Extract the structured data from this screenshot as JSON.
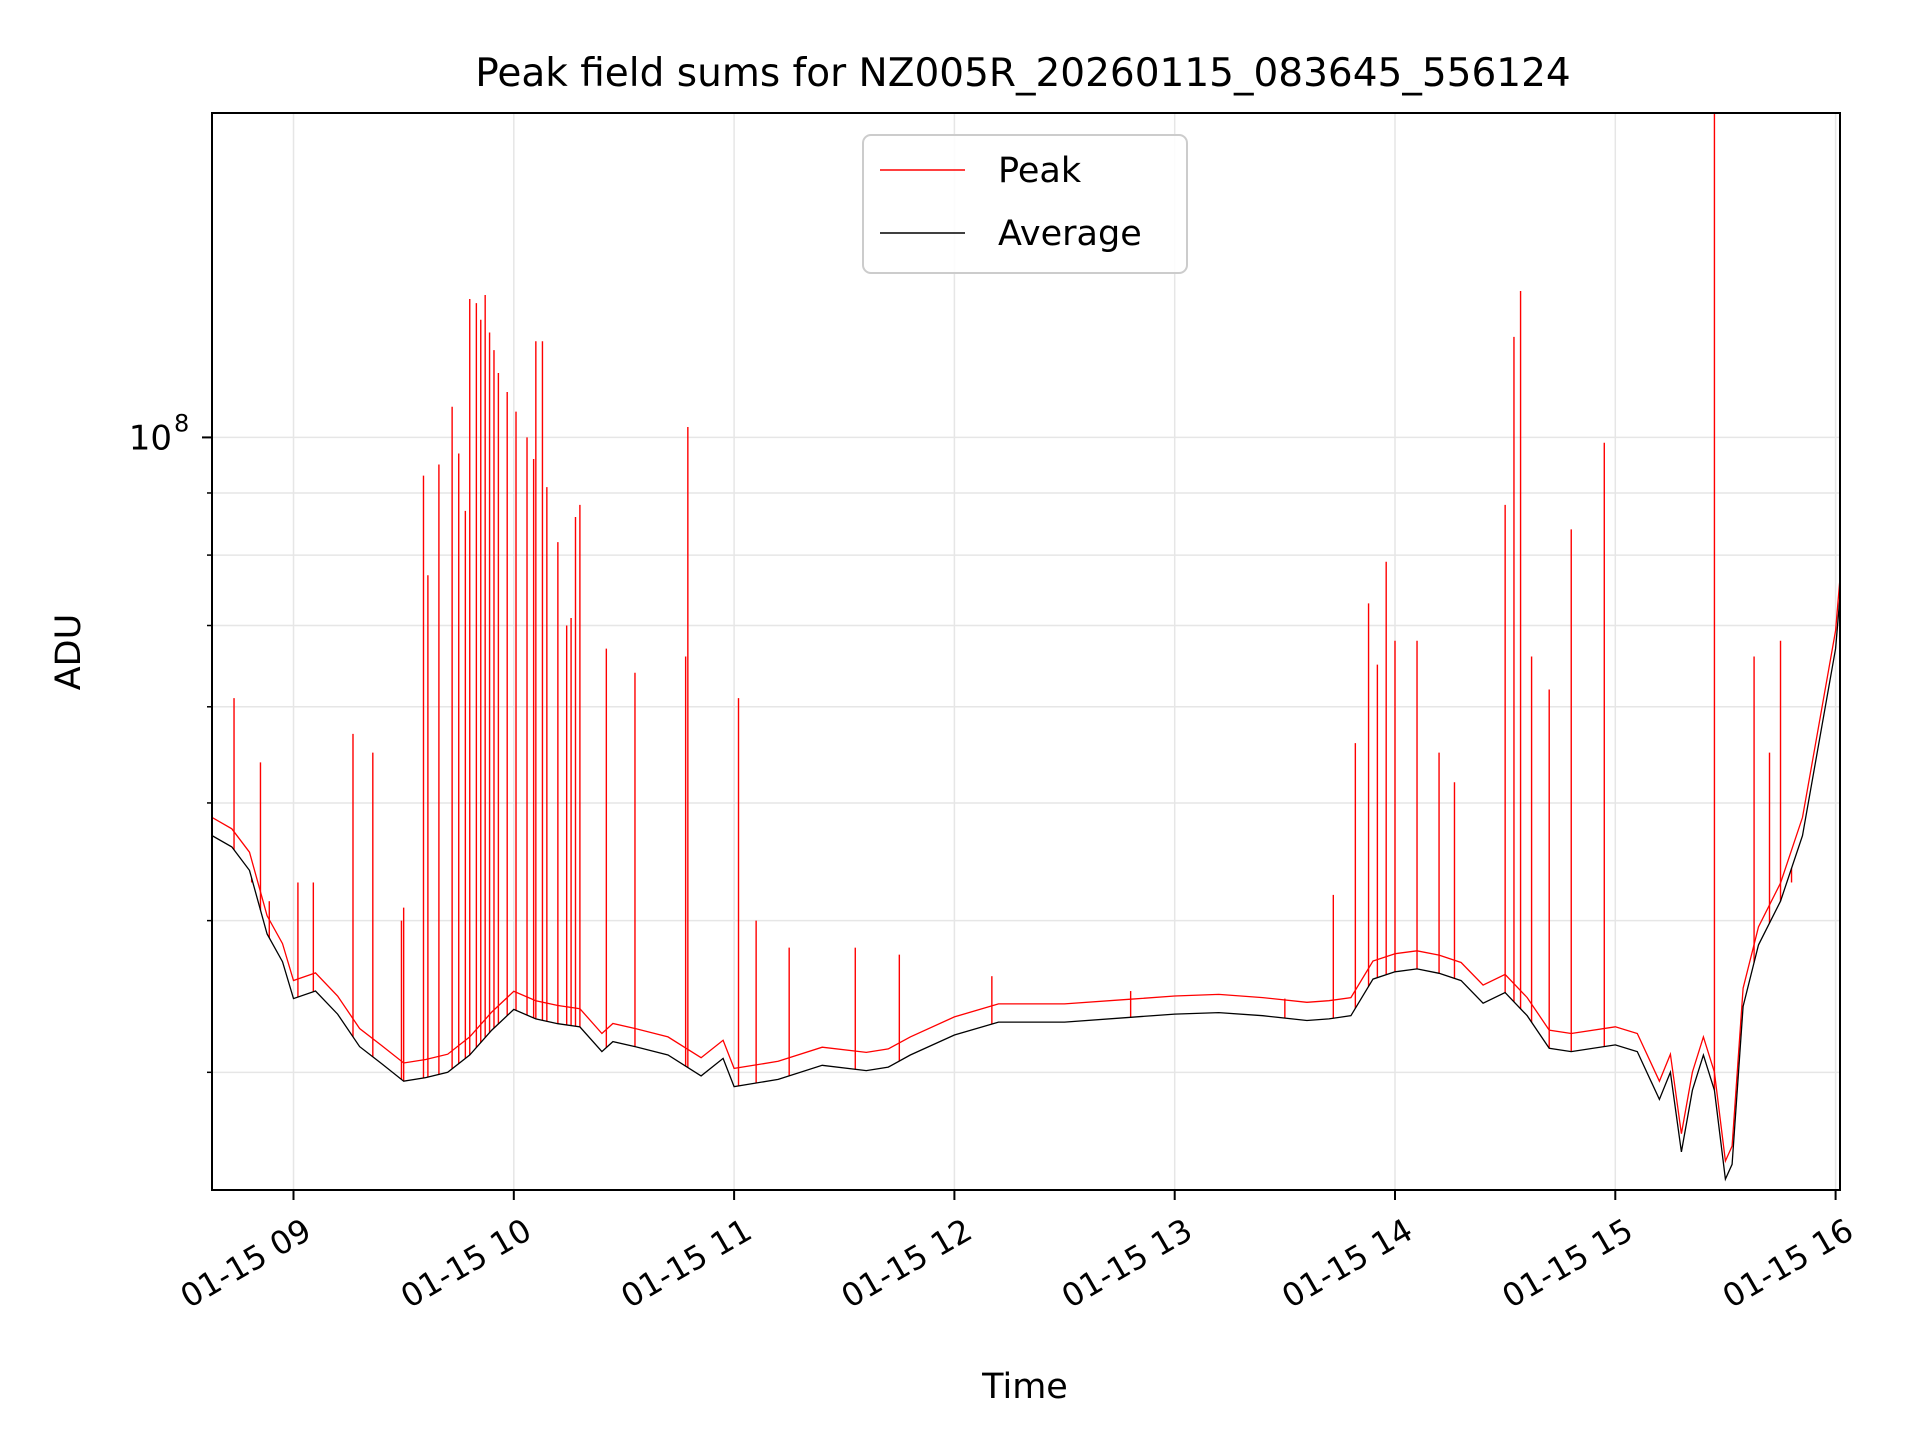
{
  "chart_data": {
    "type": "line",
    "title": "Peak field sums for NZ005R_20260115_083645_556124",
    "xlabel": "Time",
    "ylabel": "ADU",
    "yscale": "log",
    "grid": true,
    "legend_position": "upper-center",
    "xlim_hours": [
      8.63,
      16.02
    ],
    "ylim": [
      24000000,
      185000000
    ],
    "x_ticks": [
      {
        "value": 9,
        "label": "01-15 09"
      },
      {
        "value": 10,
        "label": "01-15 10"
      },
      {
        "value": 11,
        "label": "01-15 11"
      },
      {
        "value": 12,
        "label": "01-15 12"
      },
      {
        "value": 13,
        "label": "01-15 13"
      },
      {
        "value": 14,
        "label": "01-15 14"
      },
      {
        "value": 15,
        "label": "01-15 15"
      },
      {
        "value": 16,
        "label": "01-15 16"
      }
    ],
    "y_ticks": [
      {
        "value": 100000000,
        "base": "10",
        "exponent": "8"
      }
    ],
    "average_series": {
      "name": "Average",
      "color": "#000000",
      "x": [
        8.63,
        8.72,
        8.8,
        8.88,
        8.95,
        9.0,
        9.1,
        9.2,
        9.3,
        9.4,
        9.5,
        9.6,
        9.7,
        9.8,
        9.9,
        10.0,
        10.1,
        10.2,
        10.3,
        10.4,
        10.45,
        10.55,
        10.7,
        10.85,
        10.95,
        11.0,
        11.2,
        11.4,
        11.6,
        11.7,
        11.8,
        12.0,
        12.2,
        12.5,
        12.8,
        13.0,
        13.2,
        13.4,
        13.6,
        13.7,
        13.8,
        13.9,
        14.0,
        14.1,
        14.2,
        14.3,
        14.4,
        14.5,
        14.6,
        14.7,
        14.8,
        15.0,
        15.1,
        15.2,
        15.25,
        15.3,
        15.35,
        15.4,
        15.45,
        15.5,
        15.53,
        15.58,
        15.65,
        15.75,
        15.85,
        16.0,
        16.02
      ],
      "y": [
        47000000,
        46000000,
        44000000,
        39000000,
        37000000,
        34500000,
        35000000,
        33500000,
        31500000,
        30500000,
        29500000,
        29700000,
        30000000,
        31000000,
        32500000,
        33800000,
        33200000,
        32900000,
        32700000,
        31200000,
        31800000,
        31500000,
        31000000,
        29800000,
        30800000,
        29200000,
        29600000,
        30400000,
        30100000,
        30300000,
        31000000,
        32200000,
        33000000,
        33000000,
        33300000,
        33500000,
        33600000,
        33400000,
        33100000,
        33200000,
        33400000,
        35800000,
        36300000,
        36500000,
        36200000,
        35700000,
        34200000,
        34900000,
        33400000,
        31400000,
        31200000,
        31600000,
        31200000,
        28500000,
        30000000,
        25800000,
        29000000,
        31000000,
        29000000,
        24500000,
        25200000,
        34000000,
        38200000,
        41500000,
        47000000,
        67000000,
        74000000
      ]
    },
    "peak_series": {
      "name": "Peak",
      "color": "#ff0000",
      "spikes": [
        {
          "x": 8.73,
          "y": 61000000
        },
        {
          "x": 8.81,
          "y": 43000000
        },
        {
          "x": 8.85,
          "y": 54000000
        },
        {
          "x": 8.89,
          "y": 41500000
        },
        {
          "x": 9.02,
          "y": 43000000
        },
        {
          "x": 9.09,
          "y": 43000000
        },
        {
          "x": 9.27,
          "y": 57000000
        },
        {
          "x": 9.36,
          "y": 55000000
        },
        {
          "x": 9.49,
          "y": 40000000
        },
        {
          "x": 9.5,
          "y": 41000000
        },
        {
          "x": 9.59,
          "y": 93000000
        },
        {
          "x": 9.61,
          "y": 77000000
        },
        {
          "x": 9.66,
          "y": 95000000
        },
        {
          "x": 9.72,
          "y": 106000000
        },
        {
          "x": 9.75,
          "y": 97000000
        },
        {
          "x": 9.78,
          "y": 87000000
        },
        {
          "x": 9.8,
          "y": 130000000
        },
        {
          "x": 9.83,
          "y": 129000000
        },
        {
          "x": 9.85,
          "y": 125000000
        },
        {
          "x": 9.87,
          "y": 131000000
        },
        {
          "x": 9.89,
          "y": 122000000
        },
        {
          "x": 9.91,
          "y": 118000000
        },
        {
          "x": 9.93,
          "y": 113000000
        },
        {
          "x": 9.97,
          "y": 109000000
        },
        {
          "x": 10.01,
          "y": 105000000
        },
        {
          "x": 10.06,
          "y": 100000000
        },
        {
          "x": 10.09,
          "y": 96000000
        },
        {
          "x": 10.1,
          "y": 120000000
        },
        {
          "x": 10.13,
          "y": 120000000
        },
        {
          "x": 10.15,
          "y": 91000000
        },
        {
          "x": 10.2,
          "y": 82000000
        },
        {
          "x": 10.24,
          "y": 70000000
        },
        {
          "x": 10.26,
          "y": 71000000
        },
        {
          "x": 10.28,
          "y": 86000000
        },
        {
          "x": 10.3,
          "y": 88000000
        },
        {
          "x": 10.42,
          "y": 67000000
        },
        {
          "x": 10.55,
          "y": 64000000
        },
        {
          "x": 10.78,
          "y": 66000000
        },
        {
          "x": 10.79,
          "y": 102000000
        },
        {
          "x": 11.02,
          "y": 61000000
        },
        {
          "x": 11.1,
          "y": 40000000
        },
        {
          "x": 11.25,
          "y": 38000000
        },
        {
          "x": 11.55,
          "y": 38000000
        },
        {
          "x": 11.75,
          "y": 37500000
        },
        {
          "x": 12.17,
          "y": 36000000
        },
        {
          "x": 12.8,
          "y": 35000000
        },
        {
          "x": 13.5,
          "y": 34500000
        },
        {
          "x": 13.72,
          "y": 42000000
        },
        {
          "x": 13.82,
          "y": 56000000
        },
        {
          "x": 13.88,
          "y": 73000000
        },
        {
          "x": 13.92,
          "y": 65000000
        },
        {
          "x": 13.96,
          "y": 79000000
        },
        {
          "x": 14.0,
          "y": 68000000
        },
        {
          "x": 14.1,
          "y": 68000000
        },
        {
          "x": 14.2,
          "y": 55000000
        },
        {
          "x": 14.27,
          "y": 52000000
        },
        {
          "x": 14.5,
          "y": 88000000
        },
        {
          "x": 14.54,
          "y": 121000000
        },
        {
          "x": 14.57,
          "y": 132000000
        },
        {
          "x": 14.62,
          "y": 66000000
        },
        {
          "x": 14.7,
          "y": 62000000
        },
        {
          "x": 14.8,
          "y": 84000000
        },
        {
          "x": 14.95,
          "y": 99000000
        },
        {
          "x": 15.45,
          "y": 185000000
        },
        {
          "x": 15.63,
          "y": 66000000
        },
        {
          "x": 15.7,
          "y": 55000000
        },
        {
          "x": 15.75,
          "y": 68000000
        },
        {
          "x": 15.8,
          "y": 43000000
        }
      ]
    }
  }
}
